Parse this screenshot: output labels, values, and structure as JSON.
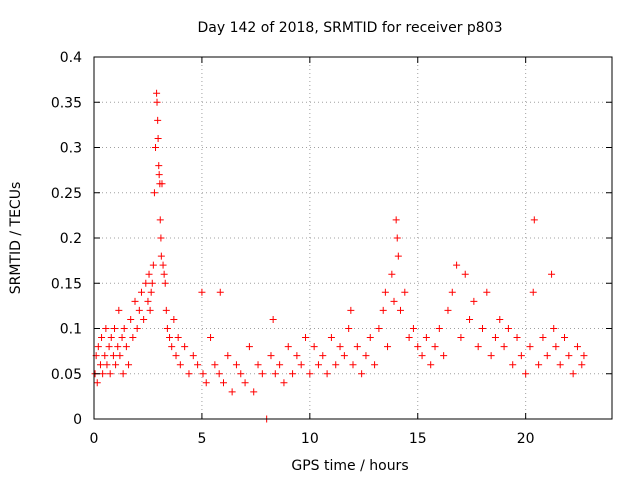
{
  "chart_data": {
    "type": "scatter",
    "title": "Day 142 of 2018, SRMTID for receiver p803",
    "xlabel": "GPS time / hours",
    "ylabel": "SRMTID / TECUs",
    "xlim": [
      0,
      24
    ],
    "ylim": [
      0,
      0.4
    ],
    "xticks": [
      0,
      5,
      10,
      15,
      20
    ],
    "yticks": [
      0,
      0.05,
      0.1,
      0.15,
      0.2,
      0.25,
      0.3,
      0.35,
      0.4
    ],
    "xtick_labels": [
      "0",
      "5",
      "10",
      "15",
      "20"
    ],
    "ytick_labels": [
      "0",
      "0.05",
      "0.1",
      "0.15",
      "0.2",
      "0.25",
      "0.3",
      "0.35",
      "0.4"
    ],
    "grid": true,
    "marker": "+",
    "color": "#ff0000",
    "series": [
      {
        "name": "SRMTID",
        "x": [
          0.05,
          0.1,
          0.15,
          0.2,
          0.3,
          0.35,
          0.4,
          0.5,
          0.55,
          0.6,
          0.7,
          0.75,
          0.8,
          0.9,
          0.95,
          1.0,
          1.1,
          1.15,
          1.2,
          1.3,
          1.35,
          1.4,
          1.5,
          1.6,
          1.7,
          1.8,
          1.9,
          2.0,
          2.1,
          2.2,
          2.3,
          2.4,
          2.5,
          2.55,
          2.6,
          2.65,
          2.7,
          2.75,
          2.8,
          2.85,
          2.9,
          2.92,
          2.95,
          2.97,
          3.0,
          3.02,
          3.05,
          3.07,
          3.1,
          3.12,
          3.15,
          3.2,
          3.25,
          3.3,
          3.35,
          3.4,
          3.5,
          3.6,
          3.7,
          3.8,
          3.9,
          4.0,
          4.2,
          4.4,
          4.6,
          4.8,
          5.0,
          5.05,
          5.2,
          5.4,
          5.6,
          5.8,
          5.85,
          6.0,
          6.2,
          6.4,
          6.6,
          6.8,
          7.0,
          7.2,
          7.4,
          7.6,
          7.8,
          8.0,
          8.2,
          8.3,
          8.4,
          8.6,
          8.8,
          9.0,
          9.2,
          9.4,
          9.6,
          9.8,
          10.0,
          10.2,
          10.4,
          10.6,
          10.8,
          11.0,
          11.2,
          11.4,
          11.6,
          11.8,
          11.9,
          12.0,
          12.2,
          12.4,
          12.6,
          12.8,
          13.0,
          13.2,
          13.4,
          13.5,
          13.6,
          13.8,
          13.9,
          14.0,
          14.05,
          14.1,
          14.2,
          14.4,
          14.6,
          14.8,
          15.0,
          15.2,
          15.4,
          15.6,
          15.8,
          16.0,
          16.2,
          16.4,
          16.6,
          16.8,
          17.0,
          17.2,
          17.4,
          17.6,
          17.8,
          18.0,
          18.2,
          18.4,
          18.6,
          18.8,
          19.0,
          19.2,
          19.4,
          19.6,
          19.8,
          20.0,
          20.2,
          20.35,
          20.4,
          20.6,
          20.8,
          21.0,
          21.2,
          21.3,
          21.4,
          21.6,
          21.8,
          22.0,
          22.2,
          22.4,
          22.6,
          22.7
        ],
        "y": [
          0.05,
          0.07,
          0.04,
          0.08,
          0.06,
          0.09,
          0.05,
          0.07,
          0.1,
          0.06,
          0.08,
          0.05,
          0.09,
          0.07,
          0.1,
          0.06,
          0.08,
          0.12,
          0.07,
          0.09,
          0.05,
          0.1,
          0.08,
          0.06,
          0.11,
          0.09,
          0.13,
          0.1,
          0.12,
          0.14,
          0.11,
          0.15,
          0.13,
          0.16,
          0.12,
          0.14,
          0.15,
          0.17,
          0.25,
          0.3,
          0.36,
          0.35,
          0.33,
          0.31,
          0.28,
          0.27,
          0.26,
          0.22,
          0.2,
          0.18,
          0.26,
          0.17,
          0.16,
          0.15,
          0.12,
          0.1,
          0.09,
          0.08,
          0.11,
          0.07,
          0.09,
          0.06,
          0.08,
          0.05,
          0.07,
          0.06,
          0.14,
          0.05,
          0.04,
          0.09,
          0.06,
          0.05,
          0.14,
          0.04,
          0.07,
          0.03,
          0.06,
          0.05,
          0.04,
          0.08,
          0.03,
          0.06,
          0.05,
          0.0,
          0.07,
          0.11,
          0.05,
          0.06,
          0.04,
          0.08,
          0.05,
          0.07,
          0.06,
          0.09,
          0.05,
          0.08,
          0.06,
          0.07,
          0.05,
          0.09,
          0.06,
          0.08,
          0.07,
          0.1,
          0.12,
          0.06,
          0.08,
          0.05,
          0.07,
          0.09,
          0.06,
          0.1,
          0.12,
          0.14,
          0.08,
          0.16,
          0.13,
          0.22,
          0.2,
          0.18,
          0.12,
          0.14,
          0.09,
          0.1,
          0.08,
          0.07,
          0.09,
          0.06,
          0.08,
          0.1,
          0.07,
          0.12,
          0.14,
          0.17,
          0.09,
          0.16,
          0.11,
          0.13,
          0.08,
          0.1,
          0.14,
          0.07,
          0.09,
          0.11,
          0.08,
          0.1,
          0.06,
          0.09,
          0.07,
          0.05,
          0.08,
          0.14,
          0.22,
          0.06,
          0.09,
          0.07,
          0.16,
          0.1,
          0.08,
          0.06,
          0.09,
          0.07,
          0.05,
          0.08,
          0.06,
          0.07
        ]
      }
    ]
  }
}
